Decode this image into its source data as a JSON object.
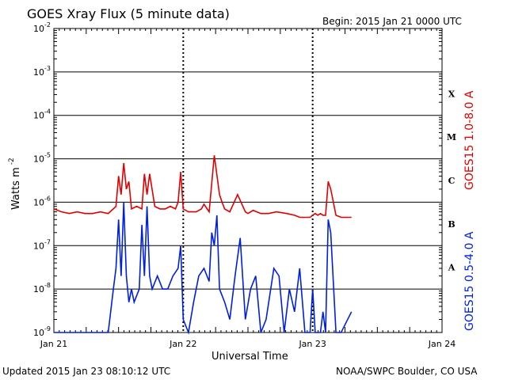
{
  "header": {
    "title": "GOES Xray Flux (5 minute data)",
    "begin": "Begin:  2015 Jan 21 0000 UTC"
  },
  "footer": {
    "updated": "Updated 2015 Jan 23 08:10:12 UTC",
    "credit": "NOAA/SWPC Boulder, CO USA"
  },
  "chart_data": {
    "type": "line",
    "xlabel": "Universal Time",
    "ylabel": "Watts m",
    "ylabel_exp": "-2",
    "y_scale": "log",
    "ylim": [
      1e-09,
      0.01
    ],
    "xlim_days": [
      0,
      3
    ],
    "x_tick_labels": [
      "Jan 21",
      "Jan 22",
      "Jan 23",
      "Jan 24"
    ],
    "y_tick_exponents": [
      "-9",
      "-8",
      "-7",
      "-6",
      "-5",
      "-4",
      "-3",
      "-2"
    ],
    "flare_classes": [
      "A",
      "B",
      "C",
      "M",
      "X"
    ],
    "grid": true,
    "series": [
      {
        "name": "GOES15 1.0-8.0 A",
        "color": "#e00000",
        "x": [
          0,
          0.06,
          0.12,
          0.18,
          0.24,
          0.3,
          0.36,
          0.42,
          0.48,
          0.5,
          0.52,
          0.54,
          0.56,
          0.58,
          0.6,
          0.64,
          0.68,
          0.7,
          0.72,
          0.74,
          0.78,
          0.82,
          0.86,
          0.9,
          0.94,
          0.96,
          0.98,
          1.0,
          1.04,
          1.1,
          1.14,
          1.16,
          1.2,
          1.24,
          1.28,
          1.3,
          1.32,
          1.36,
          1.42,
          1.48,
          1.5,
          1.54,
          1.6,
          1.66,
          1.72,
          1.8,
          1.86,
          1.9,
          1.94,
          1.98,
          2.0,
          2.02,
          2.04,
          2.06,
          2.08,
          2.1,
          2.12,
          2.14,
          2.18,
          2.22,
          2.3
        ],
        "y": [
          7e-07,
          6e-07,
          5.5e-07,
          6e-07,
          5.5e-07,
          5.5e-07,
          6e-07,
          5.5e-07,
          8e-07,
          4e-06,
          1.5e-06,
          8e-06,
          2e-06,
          3e-06,
          7e-07,
          8e-07,
          7e-07,
          4.5e-06,
          1.5e-06,
          4.5e-06,
          8e-07,
          7e-07,
          7e-07,
          8e-07,
          7e-07,
          1e-06,
          5e-06,
          7e-07,
          6e-07,
          6e-07,
          7e-07,
          9e-07,
          6e-07,
          1.2e-05,
          1.5e-06,
          1e-06,
          7e-07,
          6e-07,
          1.5e-06,
          6e-07,
          5.5e-07,
          6.5e-07,
          5.5e-07,
          5.5e-07,
          6e-07,
          5.5e-07,
          5e-07,
          4.5e-07,
          4.5e-07,
          4.5e-07,
          5e-07,
          5.5e-07,
          5e-07,
          5.5e-07,
          5e-07,
          5e-07,
          3e-06,
          2e-06,
          5e-07,
          4.5e-07,
          4.5e-07
        ]
      },
      {
        "name": "GOES15 0.5-4.0 A",
        "color": "#0020e0",
        "x": [
          0,
          0.06,
          0.12,
          0.18,
          0.24,
          0.3,
          0.36,
          0.42,
          0.46,
          0.48,
          0.5,
          0.52,
          0.54,
          0.56,
          0.58,
          0.6,
          0.62,
          0.66,
          0.68,
          0.7,
          0.72,
          0.74,
          0.76,
          0.8,
          0.84,
          0.88,
          0.92,
          0.96,
          0.98,
          1.0,
          1.04,
          1.08,
          1.12,
          1.16,
          1.2,
          1.22,
          1.24,
          1.26,
          1.28,
          1.32,
          1.36,
          1.4,
          1.44,
          1.48,
          1.52,
          1.56,
          1.6,
          1.64,
          1.7,
          1.74,
          1.78,
          1.82,
          1.86,
          1.9,
          1.94,
          1.98,
          2.0,
          2.02,
          2.06,
          2.08,
          2.1,
          2.12,
          2.14,
          2.18,
          2.22,
          2.3
        ],
        "y": [
          1e-09,
          1e-09,
          1e-09,
          1e-09,
          1e-09,
          1e-09,
          1e-09,
          1e-09,
          1e-08,
          3e-08,
          4e-07,
          2e-08,
          1e-06,
          2e-08,
          5e-09,
          1e-08,
          5e-09,
          1e-08,
          3e-07,
          2e-08,
          8e-07,
          2e-08,
          1e-08,
          2e-08,
          1e-08,
          1e-08,
          2e-08,
          3e-08,
          1e-07,
          2e-09,
          1e-09,
          5e-09,
          2e-08,
          3e-08,
          1.5e-08,
          2e-07,
          1e-07,
          5e-07,
          1e-08,
          5e-09,
          2e-09,
          2e-08,
          1.5e-07,
          2e-09,
          1e-08,
          2e-08,
          1e-09,
          2e-09,
          3e-08,
          2e-08,
          1e-09,
          1e-08,
          3e-09,
          3e-08,
          1e-09,
          1e-09,
          1e-08,
          1e-09,
          1e-09,
          3e-09,
          1e-09,
          4e-07,
          2e-07,
          1e-09,
          1e-09,
          3e-09
        ]
      }
    ]
  }
}
